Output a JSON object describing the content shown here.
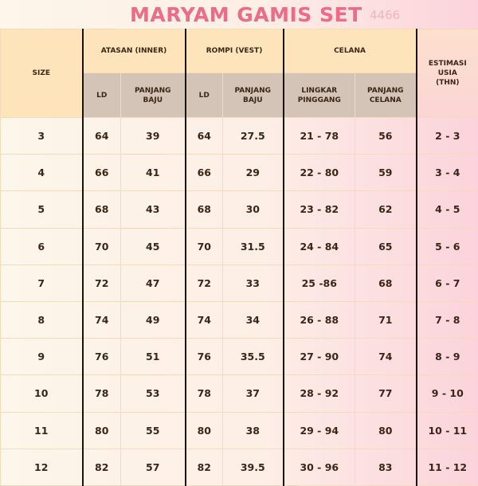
{
  "title": "MARYAM GAMIS SET",
  "code": "4466",
  "groups": {
    "size": "SIZE",
    "atasan": "ATASAN (INNER)",
    "rompi": "ROMPI (VEST)",
    "celana": "CELANA",
    "estimasi": "ESTIMASI USIA (THN)"
  },
  "subheaders": {
    "atasan_ld": "LD",
    "atasan_pb": "PANJANG BAJU",
    "rompi_ld": "LD",
    "rompi_pb": "PANJANG BAJU",
    "celana_lp": "LINGKAR PINGGANG",
    "celana_pc": "PANJANG CELANA"
  },
  "rows": [
    {
      "size": "3",
      "atasan_ld": "64",
      "atasan_pb": "39",
      "rompi_ld": "64",
      "rompi_pb": "27.5",
      "lingkar": "21 - 78",
      "panjang_celana": "56",
      "usia": "2 - 3"
    },
    {
      "size": "4",
      "atasan_ld": "66",
      "atasan_pb": "41",
      "rompi_ld": "66",
      "rompi_pb": "29",
      "lingkar": "22 - 80",
      "panjang_celana": "59",
      "usia": "3 - 4"
    },
    {
      "size": "5",
      "atasan_ld": "68",
      "atasan_pb": "43",
      "rompi_ld": "68",
      "rompi_pb": "30",
      "lingkar": "23 - 82",
      "panjang_celana": "62",
      "usia": "4 - 5"
    },
    {
      "size": "6",
      "atasan_ld": "70",
      "atasan_pb": "45",
      "rompi_ld": "70",
      "rompi_pb": "31.5",
      "lingkar": "24 - 84",
      "panjang_celana": "65",
      "usia": "5 - 6"
    },
    {
      "size": "7",
      "atasan_ld": "72",
      "atasan_pb": "47",
      "rompi_ld": "72",
      "rompi_pb": "33",
      "lingkar": "25 -86",
      "panjang_celana": "68",
      "usia": "6 - 7"
    },
    {
      "size": "8",
      "atasan_ld": "74",
      "atasan_pb": "49",
      "rompi_ld": "74",
      "rompi_pb": "34",
      "lingkar": "26 - 88",
      "panjang_celana": "71",
      "usia": "7 - 8"
    },
    {
      "size": "9",
      "atasan_ld": "76",
      "atasan_pb": "51",
      "rompi_ld": "76",
      "rompi_pb": "35.5",
      "lingkar": "27 - 90",
      "panjang_celana": "74",
      "usia": "8 - 9"
    },
    {
      "size": "10",
      "atasan_ld": "78",
      "atasan_pb": "53",
      "rompi_ld": "78",
      "rompi_pb": "37",
      "lingkar": "28 - 92",
      "panjang_celana": "77",
      "usia": "9 - 10"
    },
    {
      "size": "11",
      "atasan_ld": "80",
      "atasan_pb": "55",
      "rompi_ld": "80",
      "rompi_pb": "38",
      "lingkar": "29 - 94",
      "panjang_celana": "80",
      "usia": "10 - 11"
    },
    {
      "size": "12",
      "atasan_ld": "82",
      "atasan_pb": "57",
      "rompi_ld": "82",
      "rompi_pb": "39.5",
      "lingkar": "30 - 96",
      "panjang_celana": "83",
      "usia": "11 - 12"
    }
  ]
}
